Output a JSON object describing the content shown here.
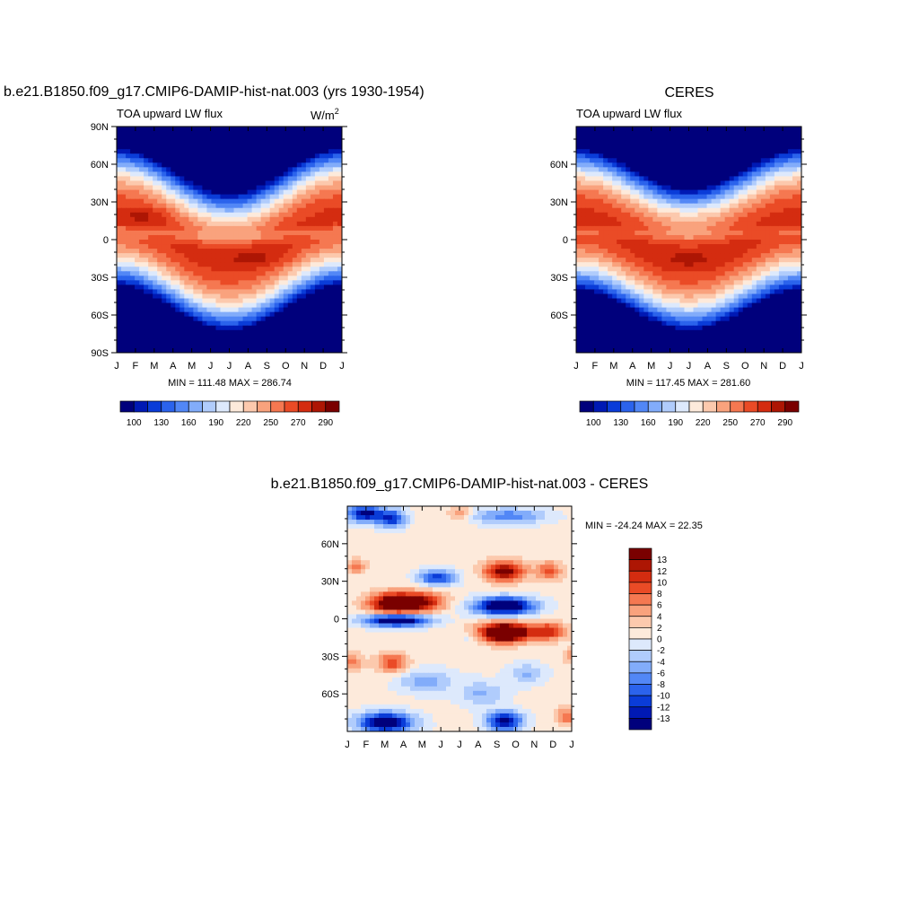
{
  "palette": [
    "#00007c",
    "#0019b4",
    "#0a3cd8",
    "#2b63ec",
    "#5287f6",
    "#82acfa",
    "#b0ccfc",
    "#dde9fc",
    "#fdeadb",
    "#fcc9ad",
    "#f9a27d",
    "#f57851",
    "#ea4b26",
    "#d42c10",
    "#ad1604",
    "#7a0000"
  ],
  "chart_data": [
    {
      "type": "heatmap",
      "title": "b.e21.B1850.f09_g17.CMIP6-DAMIP-hist-nat.003 (yrs 1930-1954)",
      "subtitle": "TOA upward LW flux",
      "units": "W/m",
      "units_sup": "2",
      "x_ticks": [
        "J",
        "F",
        "M",
        "A",
        "M",
        "J",
        "J",
        "A",
        "S",
        "O",
        "N",
        "D",
        "J"
      ],
      "y_ticks": [
        "90N",
        "60N",
        "30N",
        "0",
        "30S",
        "60S",
        "90S"
      ],
      "stats": "MIN = 111.48 MAX = 286.74",
      "min": 111.48,
      "max": 286.74,
      "colorbar_labels": [
        "100",
        "130",
        "160",
        "190",
        "220",
        "250",
        "270",
        "290"
      ],
      "colorbar_levels": [
        100,
        110,
        120,
        130,
        140,
        150,
        160,
        170,
        180,
        190,
        200,
        210,
        220,
        230,
        240,
        250,
        260,
        270,
        280,
        290
      ]
    },
    {
      "type": "heatmap",
      "title": "CERES",
      "subtitle": "TOA upward LW flux",
      "x_ticks": [
        "J",
        "F",
        "M",
        "A",
        "M",
        "J",
        "J",
        "A",
        "S",
        "O",
        "N",
        "D",
        "J"
      ],
      "y_ticks": [
        "60N",
        "30N",
        "0",
        "30S",
        "60S"
      ],
      "stats": "MIN = 117.45 MAX = 281.60",
      "min": 117.45,
      "max": 281.6,
      "colorbar_labels": [
        "100",
        "130",
        "160",
        "190",
        "220",
        "250",
        "270",
        "290"
      ]
    },
    {
      "type": "heatmap",
      "title": "b.e21.B1850.f09_g17.CMIP6-DAMIP-hist-nat.003 - CERES",
      "x_ticks": [
        "J",
        "F",
        "M",
        "A",
        "M",
        "J",
        "J",
        "A",
        "S",
        "O",
        "N",
        "D",
        "J"
      ],
      "y_ticks": [
        "60N",
        "30N",
        "0",
        "30S",
        "60S"
      ],
      "stats": "MIN = -24.24 MAX =  22.35",
      "min": -24.24,
      "max": 22.35,
      "colorbar_labels": [
        "13",
        "12",
        "10",
        "8",
        "6",
        "4",
        "2",
        "0",
        "-2",
        "-4",
        "-6",
        "-8",
        "-10",
        "-12",
        "-13"
      ]
    }
  ]
}
